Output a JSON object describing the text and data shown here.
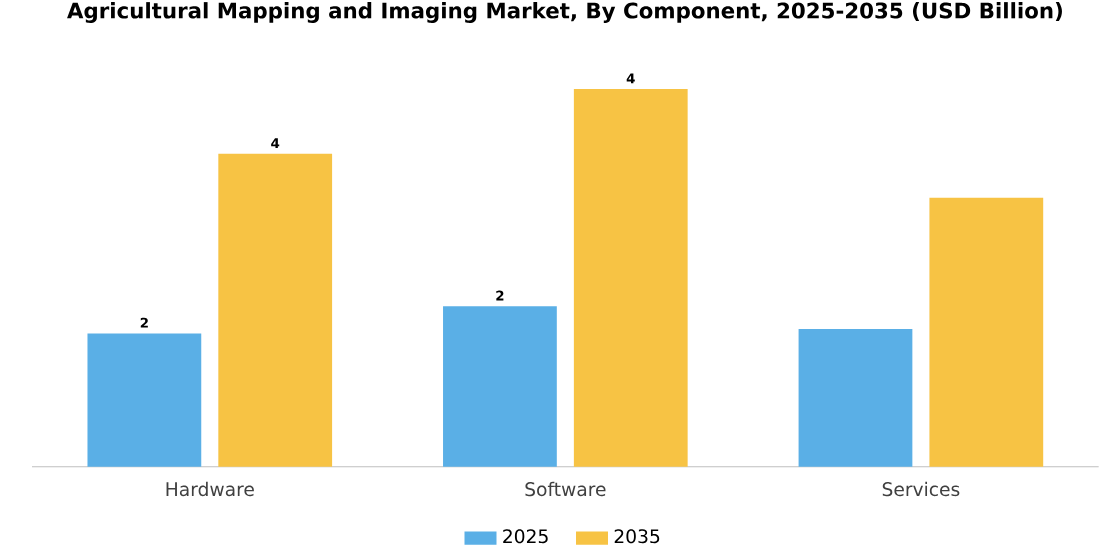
{
  "chart_data": {
    "type": "bar",
    "title": "Agricultural Mapping and Imaging Market, By Component, 2025-2035 (USD Billion)",
    "categories": [
      "Hardware",
      "Software",
      "Services"
    ],
    "tick_labels": "x",
    "legend": "bottom",
    "series": [
      {
        "name": "2025",
        "color": "#5aafe6",
        "values": [
          1.52,
          1.83,
          1.57
        ],
        "value_labels": [
          "2",
          "2",
          null
        ]
      },
      {
        "name": "2035",
        "color": "#f7c344",
        "values": [
          3.57,
          4.31,
          3.07
        ],
        "value_labels": [
          "4",
          "4",
          null
        ]
      }
    ]
  }
}
